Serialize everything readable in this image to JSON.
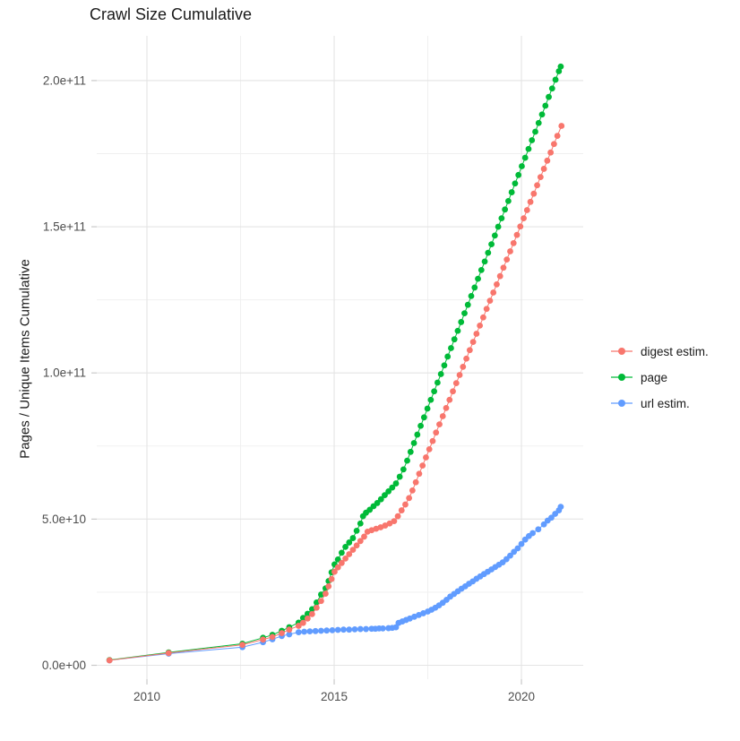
{
  "chart_data": {
    "type": "scatter",
    "title": "Crawl Size Cumulative",
    "xlabel": "",
    "ylabel": "Pages / Unique Items Cumulative",
    "grid": true,
    "legend_position": "right",
    "x_domain": [
      2008.66,
      2021.65
    ],
    "y_domain": [
      -4750000000,
      215300000000
    ],
    "x_ticks": [
      {
        "value": 2010,
        "label": "2010"
      },
      {
        "value": 2015,
        "label": "2015"
      },
      {
        "value": 2020,
        "label": "2020"
      }
    ],
    "x_minor": [
      2012.5,
      2017.5
    ],
    "y_ticks": [
      {
        "value": 0,
        "label": "0.0e+00"
      },
      {
        "value": 50000000000.0,
        "label": "5.0e+10"
      },
      {
        "value": 100000000000.0,
        "label": "1.0e+11"
      },
      {
        "value": 150000000000.0,
        "label": "1.5e+11"
      },
      {
        "value": 200000000000.0,
        "label": "2.0e+11"
      }
    ],
    "y_minor": [
      25000000000.0,
      75000000000.0,
      125000000000.0,
      175000000000.0
    ],
    "colors": {
      "grid_major": "#e4e4e4",
      "grid_minor": "#efefef",
      "tick": "#c9c9c9",
      "tick_label": "#4d4d4d"
    },
    "series": [
      {
        "name": "url estim.",
        "legend_index": 2,
        "color": "#619CFF",
        "points": [
          [
            2009.0,
            1700000000.0
          ],
          [
            2010.58,
            4000000000.0
          ],
          [
            2012.55,
            6200000000.0
          ],
          [
            2013.1,
            7900000000.0
          ],
          [
            2013.35,
            8900000000.0
          ],
          [
            2013.6,
            10000000000.0
          ],
          [
            2013.8,
            10600000000.0
          ],
          [
            2014.05,
            11300000000.0
          ],
          [
            2014.2,
            11500000000.0
          ],
          [
            2014.35,
            11600000000.0
          ],
          [
            2014.5,
            11700000000.0
          ],
          [
            2014.65,
            11800000000.0
          ],
          [
            2014.8,
            11900000000.0
          ],
          [
            2014.95,
            12000000000.0
          ],
          [
            2015.1,
            12100000000.0
          ],
          [
            2015.25,
            12200000000.0
          ],
          [
            2015.4,
            12200000000.0
          ],
          [
            2015.55,
            12300000000.0
          ],
          [
            2015.7,
            12400000000.0
          ],
          [
            2015.85,
            12400000000.0
          ],
          [
            2016.0,
            12500000000.0
          ],
          [
            2016.1,
            12500000000.0
          ],
          [
            2016.2,
            12600000000.0
          ],
          [
            2016.3,
            12600000000.0
          ],
          [
            2016.45,
            12700000000.0
          ],
          [
            2016.55,
            12800000000.0
          ],
          [
            2016.65,
            13000000000.0
          ],
          [
            2016.72,
            14500000000.0
          ],
          [
            2016.82,
            15000000000.0
          ],
          [
            2016.92,
            15500000000.0
          ],
          [
            2017.02,
            16000000000.0
          ],
          [
            2017.14,
            16600000000.0
          ],
          [
            2017.26,
            17200000000.0
          ],
          [
            2017.38,
            17800000000.0
          ],
          [
            2017.5,
            18400000000.0
          ],
          [
            2017.6,
            19000000000.0
          ],
          [
            2017.7,
            19700000000.0
          ],
          [
            2017.8,
            20500000000.0
          ],
          [
            2017.9,
            21400000000.0
          ],
          [
            2018.0,
            22400000000.0
          ],
          [
            2018.1,
            23500000000.0
          ],
          [
            2018.2,
            24400000000.0
          ],
          [
            2018.3,
            25300000000.0
          ],
          [
            2018.4,
            26200000000.0
          ],
          [
            2018.5,
            27000000000.0
          ],
          [
            2018.6,
            27900000000.0
          ],
          [
            2018.7,
            28700000000.0
          ],
          [
            2018.8,
            29600000000.0
          ],
          [
            2018.9,
            30400000000.0
          ],
          [
            2019.0,
            31200000000.0
          ],
          [
            2019.1,
            32000000000.0
          ],
          [
            2019.2,
            32800000000.0
          ],
          [
            2019.3,
            33600000000.0
          ],
          [
            2019.4,
            34400000000.0
          ],
          [
            2019.5,
            35200000000.0
          ],
          [
            2019.6,
            36300000000.0
          ],
          [
            2019.7,
            37500000000.0
          ],
          [
            2019.8,
            38800000000.0
          ],
          [
            2019.9,
            40000000000.0
          ],
          [
            2020.0,
            41500000000.0
          ],
          [
            2020.1,
            43000000000.0
          ],
          [
            2020.2,
            44200000000.0
          ],
          [
            2020.3,
            45200000000.0
          ],
          [
            2020.45,
            46500000000.0
          ],
          [
            2020.6,
            48200000000.0
          ],
          [
            2020.7,
            49500000000.0
          ],
          [
            2020.8,
            50500000000.0
          ],
          [
            2020.9,
            51800000000.0
          ],
          [
            2021.0,
            53000000000.0
          ],
          [
            2021.05,
            54200000000.0
          ]
        ]
      },
      {
        "name": "page",
        "legend_index": 1,
        "color": "#00BA38",
        "points": [
          [
            2009.0,
            1800000000.0
          ],
          [
            2010.58,
            4400000000.0
          ],
          [
            2012.55,
            7400000000.0
          ],
          [
            2013.1,
            9400000000.0
          ],
          [
            2013.35,
            10400000000.0
          ],
          [
            2013.6,
            11800000000.0
          ],
          [
            2013.8,
            13000000000.0
          ],
          [
            2014.05,
            14600000000.0
          ],
          [
            2014.17,
            16200000000.0
          ],
          [
            2014.29,
            17600000000.0
          ],
          [
            2014.41,
            19200000000.0
          ],
          [
            2014.53,
            21500000000.0
          ],
          [
            2014.65,
            24200000000.0
          ],
          [
            2014.77,
            26300000000.0
          ],
          [
            2014.85,
            28800000000.0
          ],
          [
            2014.93,
            31800000000.0
          ],
          [
            2015.01,
            34500000000.0
          ],
          [
            2015.1,
            36200000000.0
          ],
          [
            2015.2,
            38500000000.0
          ],
          [
            2015.3,
            40500000000.0
          ],
          [
            2015.4,
            42000000000.0
          ],
          [
            2015.5,
            43500000000.0
          ],
          [
            2015.6,
            46000000000.0
          ],
          [
            2015.7,
            48500000000.0
          ],
          [
            2015.77,
            51000000000.0
          ],
          [
            2015.85,
            52200000000.0
          ],
          [
            2015.95,
            53200000000.0
          ],
          [
            2016.05,
            54400000000.0
          ],
          [
            2016.15,
            55500000000.0
          ],
          [
            2016.25,
            56800000000.0
          ],
          [
            2016.35,
            58200000000.0
          ],
          [
            2016.45,
            59500000000.0
          ],
          [
            2016.55,
            60800000000.0
          ],
          [
            2016.65,
            62200000000.0
          ],
          [
            2016.75,
            64500000000.0
          ],
          [
            2016.85,
            67000000000.0
          ],
          [
            2016.95,
            70000000000.0
          ],
          [
            2017.04,
            73000000000.0
          ],
          [
            2017.13,
            76000000000.0
          ],
          [
            2017.22,
            78900000000.0
          ],
          [
            2017.31,
            81900000000.0
          ],
          [
            2017.4,
            84800000000.0
          ],
          [
            2017.49,
            87800000000.0
          ],
          [
            2017.58,
            90800000000.0
          ],
          [
            2017.67,
            93700000000.0
          ],
          [
            2017.76,
            96700000000.0
          ],
          [
            2017.85,
            99600000000.0
          ],
          [
            2017.94,
            102600000000.0
          ],
          [
            2018.03,
            105600000000.0
          ],
          [
            2018.12,
            108500000000.0
          ],
          [
            2018.21,
            111500000000.0
          ],
          [
            2018.3,
            114400000000.0
          ],
          [
            2018.39,
            117400000000.0
          ],
          [
            2018.48,
            120400000000.0
          ],
          [
            2018.57,
            123300000000.0
          ],
          [
            2018.66,
            126300000000.0
          ],
          [
            2018.75,
            129200000000.0
          ],
          [
            2018.84,
            132200000000.0
          ],
          [
            2018.93,
            135200000000.0
          ],
          [
            2019.02,
            138100000000.0
          ],
          [
            2019.11,
            141100000000.0
          ],
          [
            2019.2,
            144000000000.0
          ],
          [
            2019.29,
            147000000000.0
          ],
          [
            2019.38,
            150000000000.0
          ],
          [
            2019.47,
            152900000000.0
          ],
          [
            2019.56,
            155900000000.0
          ],
          [
            2019.65,
            158800000000.0
          ],
          [
            2019.74,
            161800000000.0
          ],
          [
            2019.83,
            164800000000.0
          ],
          [
            2019.92,
            167700000000.0
          ],
          [
            2020.01,
            170700000000.0
          ],
          [
            2020.1,
            173600000000.0
          ],
          [
            2020.19,
            176600000000.0
          ],
          [
            2020.28,
            179600000000.0
          ],
          [
            2020.37,
            182500000000.0
          ],
          [
            2020.46,
            185500000000.0
          ],
          [
            2020.55,
            188400000000.0
          ],
          [
            2020.64,
            191400000000.0
          ],
          [
            2020.73,
            194400000000.0
          ],
          [
            2020.82,
            197300000000.0
          ],
          [
            2020.91,
            200300000000.0
          ],
          [
            2021.0,
            203200000000.0
          ],
          [
            2021.05,
            204800000000.0
          ]
        ]
      },
      {
        "name": "digest estim.",
        "legend_index": 0,
        "color": "#F8766D",
        "points": [
          [
            2009.0,
            1700000000.0
          ],
          [
            2010.58,
            4200000000.0
          ],
          [
            2012.55,
            7000000000.0
          ],
          [
            2013.1,
            8800000000.0
          ],
          [
            2013.35,
            9700000000.0
          ],
          [
            2013.6,
            11000000000.0
          ],
          [
            2013.8,
            12200000000.0
          ],
          [
            2014.05,
            13500000000.0
          ],
          [
            2014.17,
            14500000000.0
          ],
          [
            2014.29,
            16000000000.0
          ],
          [
            2014.41,
            17500000000.0
          ],
          [
            2014.53,
            19700000000.0
          ],
          [
            2014.65,
            22000000000.0
          ],
          [
            2014.77,
            24500000000.0
          ],
          [
            2014.85,
            27000000000.0
          ],
          [
            2014.93,
            29500000000.0
          ],
          [
            2015.01,
            32000000000.0
          ],
          [
            2015.1,
            33500000000.0
          ],
          [
            2015.2,
            35000000000.0
          ],
          [
            2015.3,
            36500000000.0
          ],
          [
            2015.4,
            38000000000.0
          ],
          [
            2015.5,
            39500000000.0
          ],
          [
            2015.6,
            41000000000.0
          ],
          [
            2015.7,
            42500000000.0
          ],
          [
            2015.8,
            44000000000.0
          ],
          [
            2015.89,
            45700000000.0
          ],
          [
            2016.0,
            46200000000.0
          ],
          [
            2016.12,
            46700000000.0
          ],
          [
            2016.24,
            47200000000.0
          ],
          [
            2016.36,
            47800000000.0
          ],
          [
            2016.48,
            48500000000.0
          ],
          [
            2016.6,
            49300000000.0
          ],
          [
            2016.7,
            51000000000.0
          ],
          [
            2016.8,
            53000000000.0
          ],
          [
            2016.9,
            55000000000.0
          ],
          [
            2017.0,
            57200000000.0
          ],
          [
            2017.09,
            59800000000.0
          ],
          [
            2017.18,
            62600000000.0
          ],
          [
            2017.27,
            65500000000.0
          ],
          [
            2017.36,
            68300000000.0
          ],
          [
            2017.45,
            71100000000.0
          ],
          [
            2017.54,
            73900000000.0
          ],
          [
            2017.63,
            76700000000.0
          ],
          [
            2017.72,
            79600000000.0
          ],
          [
            2017.81,
            82400000000.0
          ],
          [
            2017.9,
            85200000000.0
          ],
          [
            2017.99,
            88000000000.0
          ],
          [
            2018.08,
            90800000000.0
          ],
          [
            2018.17,
            93700000000.0
          ],
          [
            2018.26,
            96500000000.0
          ],
          [
            2018.35,
            99300000000.0
          ],
          [
            2018.44,
            102100000000.0
          ],
          [
            2018.53,
            104900000000.0
          ],
          [
            2018.62,
            107800000000.0
          ],
          [
            2018.71,
            110600000000.0
          ],
          [
            2018.8,
            113400000000.0
          ],
          [
            2018.89,
            116200000000.0
          ],
          [
            2018.98,
            119000000000.0
          ],
          [
            2019.07,
            121900000000.0
          ],
          [
            2019.16,
            124700000000.0
          ],
          [
            2019.25,
            127500000000.0
          ],
          [
            2019.34,
            130300000000.0
          ],
          [
            2019.43,
            133100000000.0
          ],
          [
            2019.52,
            136000000000.0
          ],
          [
            2019.61,
            138800000000.0
          ],
          [
            2019.7,
            141600000000.0
          ],
          [
            2019.79,
            144400000000.0
          ],
          [
            2019.88,
            147200000000.0
          ],
          [
            2019.97,
            150100000000.0
          ],
          [
            2020.06,
            152900000000.0
          ],
          [
            2020.15,
            155700000000.0
          ],
          [
            2020.24,
            158500000000.0
          ],
          [
            2020.33,
            161300000000.0
          ],
          [
            2020.42,
            164200000000.0
          ],
          [
            2020.51,
            167000000000.0
          ],
          [
            2020.6,
            169800000000.0
          ],
          [
            2020.69,
            172600000000.0
          ],
          [
            2020.78,
            175400000000.0
          ],
          [
            2020.87,
            178300000000.0
          ],
          [
            2020.96,
            181100000000.0
          ],
          [
            2021.07,
            184500000000.0
          ]
        ]
      }
    ]
  }
}
